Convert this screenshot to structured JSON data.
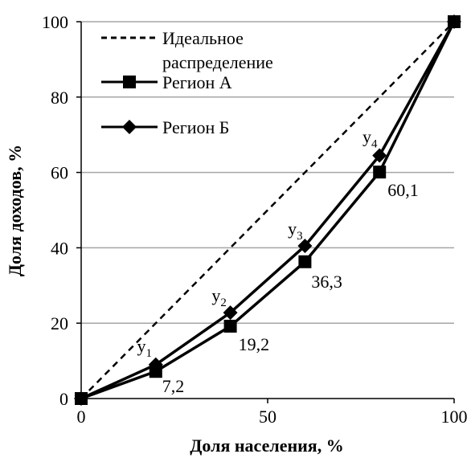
{
  "chart_data": {
    "type": "line",
    "x": [
      0,
      20,
      40,
      60,
      80,
      100
    ],
    "xlim": [
      0,
      100
    ],
    "ylim": [
      0,
      100
    ],
    "x_ticks": [
      "0",
      "50",
      "100"
    ],
    "y_ticks": [
      "0",
      "20",
      "40",
      "60",
      "80",
      "100"
    ],
    "xlabel": "Доля населения, %",
    "ylabel": "Доля доходов, %",
    "grid": "horizontal",
    "legend_position": "top-left",
    "series": [
      {
        "name": "Идеальное распределение",
        "values": [
          0,
          100
        ],
        "x": [
          0,
          100
        ],
        "style": "dashed",
        "marker": "none"
      },
      {
        "name": "Регион А",
        "values": [
          0,
          7.2,
          19.2,
          36.3,
          60.1,
          100
        ],
        "style": "solid",
        "marker": "square"
      },
      {
        "name": "Регион Б",
        "values": [
          0,
          9,
          22.8,
          40.5,
          64.5,
          100
        ],
        "style": "solid",
        "marker": "diamond"
      }
    ],
    "legend": {
      "ideal_line1": "Идеальное",
      "ideal_line2": "распределение",
      "region_a": "Регион А",
      "region_b": "Регион Б"
    },
    "annotations": {
      "a_values": [
        "7,2",
        "19,2",
        "36,3",
        "60,1"
      ],
      "y_labels": [
        {
          "base": "y",
          "sub": "1"
        },
        {
          "base": "y",
          "sub": "2"
        },
        {
          "base": "y",
          "sub": "3"
        },
        {
          "base": "y",
          "sub": "4"
        }
      ]
    },
    "colors": {
      "line": "#000000",
      "grid": "#a6a6a6"
    }
  }
}
